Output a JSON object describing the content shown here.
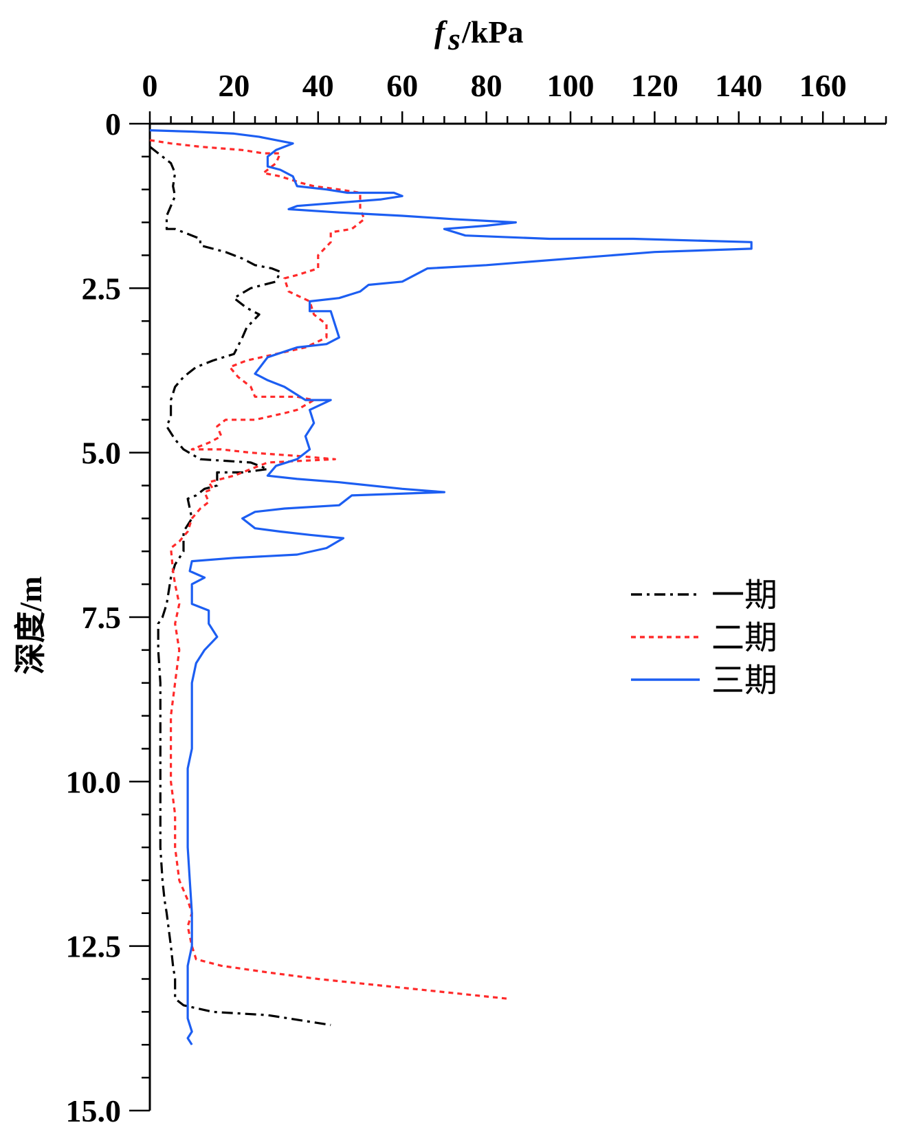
{
  "chart_data": {
    "type": "line",
    "title": "",
    "xlabel": {
      "main": "f",
      "sub": "s",
      "unit": "/kPa"
    },
    "ylabel": "深度/m",
    "x_axis_position": "top",
    "y_reversed": true,
    "xlim": [
      0,
      175
    ],
    "ylim": [
      0,
      15
    ],
    "x_ticks": [
      0,
      20,
      40,
      60,
      80,
      100,
      120,
      140,
      160
    ],
    "x_tick_labels": [
      "0",
      "20",
      "40",
      "60",
      "80",
      "100",
      "120",
      "140",
      "160"
    ],
    "y_ticks": [
      0,
      2.5,
      5,
      7.5,
      10,
      12.5,
      15
    ],
    "y_tick_labels": [
      "0",
      "2.5",
      "5.0",
      "7.5",
      "10.0",
      "12.5",
      "15.0"
    ],
    "grid": false,
    "legend_position": "right-middle",
    "series": [
      {
        "name": "一期",
        "color": "#000000",
        "style": "dashdot",
        "points": [
          [
            0,
            0.35
          ],
          [
            3,
            0.5
          ],
          [
            5,
            0.6
          ],
          [
            6,
            0.75
          ],
          [
            5.5,
            0.95
          ],
          [
            6,
            1.1
          ],
          [
            5,
            1.25
          ],
          [
            4,
            1.4
          ],
          [
            4,
            1.6
          ],
          [
            6,
            1.6
          ],
          [
            10,
            1.7
          ],
          [
            12,
            1.75
          ],
          [
            12,
            1.85
          ],
          [
            18,
            1.95
          ],
          [
            22,
            2.05
          ],
          [
            25,
            2.15
          ],
          [
            29,
            2.2
          ],
          [
            31,
            2.25
          ],
          [
            30,
            2.4
          ],
          [
            27,
            2.45
          ],
          [
            24,
            2.5
          ],
          [
            20,
            2.65
          ],
          [
            23,
            2.8
          ],
          [
            26,
            2.9
          ],
          [
            23,
            3.1
          ],
          [
            22,
            3.25
          ],
          [
            20,
            3.5
          ],
          [
            15,
            3.6
          ],
          [
            11,
            3.7
          ],
          [
            8,
            3.85
          ],
          [
            6,
            4.0
          ],
          [
            5,
            4.2
          ],
          [
            5,
            4.45
          ],
          [
            4,
            4.6
          ],
          [
            6,
            4.8
          ],
          [
            8,
            4.95
          ],
          [
            12,
            5.1
          ],
          [
            24,
            5.15
          ],
          [
            28,
            5.25
          ],
          [
            22,
            5.3
          ],
          [
            16,
            5.3
          ],
          [
            16,
            5.5
          ],
          [
            13,
            5.55
          ],
          [
            11,
            5.65
          ],
          [
            9,
            5.7
          ],
          [
            10,
            6.0
          ],
          [
            8,
            6.2
          ],
          [
            8,
            6.5
          ],
          [
            6,
            6.7
          ],
          [
            5,
            6.9
          ],
          [
            4,
            7.3
          ],
          [
            3,
            7.5
          ],
          [
            2,
            7.6
          ],
          [
            2,
            8.0
          ],
          [
            2.5,
            8.5
          ],
          [
            2.5,
            9.0
          ],
          [
            2.5,
            9.5
          ],
          [
            2.5,
            10.0
          ],
          [
            2.5,
            10.5
          ],
          [
            2.5,
            11.0
          ],
          [
            3,
            11.5
          ],
          [
            3.5,
            11.8
          ],
          [
            4,
            12.0
          ],
          [
            5,
            12.5
          ],
          [
            5.5,
            12.8
          ],
          [
            6,
            13.0
          ],
          [
            6,
            13.3
          ],
          [
            8,
            13.4
          ],
          [
            15,
            13.5
          ],
          [
            28,
            13.55
          ],
          [
            43,
            13.7
          ]
        ]
      },
      {
        "name": "二期",
        "color": "#ff2a2a",
        "style": "dotted",
        "points": [
          [
            0,
            0.25
          ],
          [
            5,
            0.3
          ],
          [
            12,
            0.35
          ],
          [
            22,
            0.4
          ],
          [
            27,
            0.45
          ],
          [
            31,
            0.45
          ],
          [
            30,
            0.6
          ],
          [
            27,
            0.75
          ],
          [
            31,
            0.8
          ],
          [
            36,
            0.9
          ],
          [
            39,
            0.95
          ],
          [
            45,
            1.0
          ],
          [
            50,
            1.05
          ],
          [
            50,
            1.3
          ],
          [
            51,
            1.45
          ],
          [
            48,
            1.6
          ],
          [
            43,
            1.65
          ],
          [
            43,
            1.8
          ],
          [
            40,
            2.0
          ],
          [
            40,
            2.2
          ],
          [
            35,
            2.3
          ],
          [
            32,
            2.35
          ],
          [
            33,
            2.55
          ],
          [
            38,
            2.7
          ],
          [
            39,
            2.9
          ],
          [
            42,
            3.05
          ],
          [
            42,
            3.25
          ],
          [
            37,
            3.4
          ],
          [
            30,
            3.5
          ],
          [
            23,
            3.6
          ],
          [
            19,
            3.7
          ],
          [
            21,
            3.85
          ],
          [
            24,
            4.0
          ],
          [
            25,
            4.15
          ],
          [
            35,
            4.15
          ],
          [
            39,
            4.2
          ],
          [
            35,
            4.35
          ],
          [
            32,
            4.4
          ],
          [
            25,
            4.5
          ],
          [
            18,
            4.5
          ],
          [
            16,
            4.6
          ],
          [
            17,
            4.75
          ],
          [
            14,
            4.85
          ],
          [
            10,
            4.95
          ],
          [
            17,
            4.95
          ],
          [
            24,
            5.0
          ],
          [
            35,
            5.05
          ],
          [
            44,
            5.1
          ],
          [
            28,
            5.15
          ],
          [
            24,
            5.25
          ],
          [
            20,
            5.35
          ],
          [
            17,
            5.4
          ],
          [
            14,
            5.45
          ],
          [
            15,
            5.55
          ],
          [
            13,
            5.6
          ],
          [
            14,
            5.75
          ],
          [
            12,
            5.85
          ],
          [
            10,
            6.0
          ],
          [
            9,
            6.2
          ],
          [
            7,
            6.35
          ],
          [
            5,
            6.45
          ],
          [
            5.5,
            6.8
          ],
          [
            6,
            7.0
          ],
          [
            7,
            7.3
          ],
          [
            6,
            7.6
          ],
          [
            7,
            8.0
          ],
          [
            6,
            8.5
          ],
          [
            5,
            9.0
          ],
          [
            5,
            9.5
          ],
          [
            5,
            10.0
          ],
          [
            6,
            10.5
          ],
          [
            6,
            11.0
          ],
          [
            7,
            11.5
          ],
          [
            9,
            11.8
          ],
          [
            10,
            12.0
          ],
          [
            9,
            12.2
          ],
          [
            10,
            12.5
          ],
          [
            11,
            12.7
          ],
          [
            17,
            12.8
          ],
          [
            28,
            12.9
          ],
          [
            40,
            13.0
          ],
          [
            55,
            13.1
          ],
          [
            70,
            13.2
          ],
          [
            85,
            13.3
          ]
        ]
      },
      {
        "name": "三期",
        "color": "#1c5ef2",
        "style": "solid",
        "points": [
          [
            0,
            0.1
          ],
          [
            10,
            0.12
          ],
          [
            20,
            0.15
          ],
          [
            26,
            0.2
          ],
          [
            34,
            0.3
          ],
          [
            30,
            0.4
          ],
          [
            28,
            0.5
          ],
          [
            28,
            0.65
          ],
          [
            31,
            0.7
          ],
          [
            34,
            0.8
          ],
          [
            35,
            0.95
          ],
          [
            42,
            1.0
          ],
          [
            47,
            1.05
          ],
          [
            58,
            1.05
          ],
          [
            60,
            1.1
          ],
          [
            55,
            1.15
          ],
          [
            45,
            1.2
          ],
          [
            35,
            1.25
          ],
          [
            33,
            1.3
          ],
          [
            45,
            1.35
          ],
          [
            60,
            1.4
          ],
          [
            72,
            1.45
          ],
          [
            87,
            1.5
          ],
          [
            80,
            1.55
          ],
          [
            70,
            1.6
          ],
          [
            75,
            1.7
          ],
          [
            95,
            1.75
          ],
          [
            115,
            1.75
          ],
          [
            143,
            1.8
          ],
          [
            143,
            1.9
          ],
          [
            120,
            1.95
          ],
          [
            100,
            2.05
          ],
          [
            80,
            2.15
          ],
          [
            66,
            2.2
          ],
          [
            60,
            2.4
          ],
          [
            52,
            2.45
          ],
          [
            50,
            2.55
          ],
          [
            45,
            2.65
          ],
          [
            38,
            2.7
          ],
          [
            38,
            2.85
          ],
          [
            43,
            2.85
          ],
          [
            44,
            3.05
          ],
          [
            45,
            3.25
          ],
          [
            42,
            3.35
          ],
          [
            35,
            3.4
          ],
          [
            28,
            3.55
          ],
          [
            25,
            3.8
          ],
          [
            28,
            3.9
          ],
          [
            32,
            4.0
          ],
          [
            37,
            4.2
          ],
          [
            43,
            4.2
          ],
          [
            38,
            4.35
          ],
          [
            39,
            4.55
          ],
          [
            37,
            4.75
          ],
          [
            38,
            4.95
          ],
          [
            35,
            5.1
          ],
          [
            30,
            5.2
          ],
          [
            28,
            5.35
          ],
          [
            35,
            5.4
          ],
          [
            45,
            5.45
          ],
          [
            60,
            5.55
          ],
          [
            70,
            5.6
          ],
          [
            48,
            5.65
          ],
          [
            45,
            5.8
          ],
          [
            32,
            5.85
          ],
          [
            25,
            5.9
          ],
          [
            22,
            6.0
          ],
          [
            25,
            6.15
          ],
          [
            31,
            6.2
          ],
          [
            38,
            6.25
          ],
          [
            46,
            6.3
          ],
          [
            42,
            6.45
          ],
          [
            35,
            6.55
          ],
          [
            20,
            6.6
          ],
          [
            10,
            6.65
          ],
          [
            9.5,
            6.8
          ],
          [
            13,
            6.9
          ],
          [
            10,
            7.0
          ],
          [
            10,
            7.3
          ],
          [
            14,
            7.4
          ],
          [
            14,
            7.6
          ],
          [
            16,
            7.8
          ],
          [
            13,
            8.0
          ],
          [
            11,
            8.2
          ],
          [
            10,
            8.5
          ],
          [
            10,
            9.0
          ],
          [
            10,
            9.5
          ],
          [
            9,
            9.8
          ],
          [
            9,
            10.0
          ],
          [
            9,
            10.5
          ],
          [
            9,
            11.0
          ],
          [
            9.5,
            11.5
          ],
          [
            10,
            12.0
          ],
          [
            10,
            12.5
          ],
          [
            9,
            12.8
          ],
          [
            9,
            13.0
          ],
          [
            9,
            13.4
          ],
          [
            9,
            13.6
          ],
          [
            10,
            13.8
          ],
          [
            9,
            13.9
          ],
          [
            10,
            14.0
          ]
        ]
      }
    ]
  }
}
